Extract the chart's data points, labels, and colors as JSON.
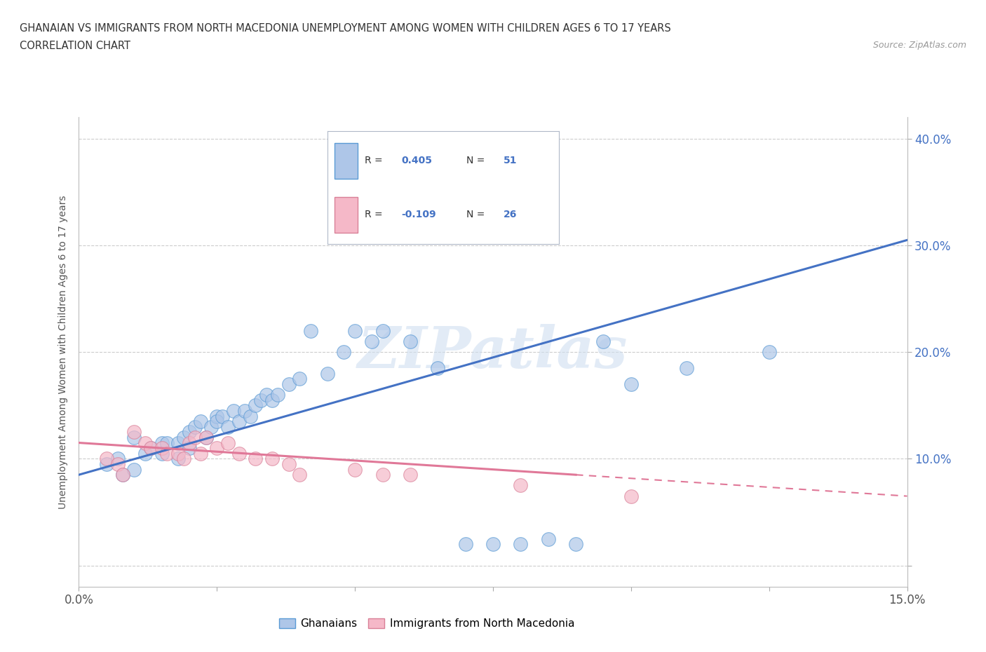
{
  "title_line1": "GHANAIAN VS IMMIGRANTS FROM NORTH MACEDONIA UNEMPLOYMENT AMONG WOMEN WITH CHILDREN AGES 6 TO 17 YEARS",
  "title_line2": "CORRELATION CHART",
  "source": "Source: ZipAtlas.com",
  "ylabel": "Unemployment Among Women with Children Ages 6 to 17 years",
  "xlim": [
    0.0,
    0.15
  ],
  "ylim": [
    -0.02,
    0.42
  ],
  "xticks": [
    0.0,
    0.025,
    0.05,
    0.075,
    0.1,
    0.125,
    0.15
  ],
  "xtick_labels": [
    "0.0%",
    "",
    "",
    "",
    "",
    "",
    "15.0%"
  ],
  "yticks": [
    0.0,
    0.1,
    0.2,
    0.3,
    0.4
  ],
  "ytick_labels": [
    "",
    "10.0%",
    "20.0%",
    "30.0%",
    "40.0%"
  ],
  "watermark": "ZIPatlas",
  "blue_color": "#aec6e8",
  "blue_edge": "#5b9bd5",
  "pink_color": "#f5b8c8",
  "pink_edge": "#d98098",
  "blue_line_color": "#4472c4",
  "pink_line_color": "#e07898",
  "grid_color": "#cccccc",
  "blue_line_x0": 0.0,
  "blue_line_y0": 0.085,
  "blue_line_x1": 0.15,
  "blue_line_y1": 0.305,
  "pink_line_x0": 0.0,
  "pink_line_y0": 0.115,
  "pink_line_x1": 0.15,
  "pink_line_y1": 0.065,
  "blue_scatter_x": [
    0.005,
    0.007,
    0.008,
    0.01,
    0.01,
    0.012,
    0.013,
    0.015,
    0.015,
    0.016,
    0.018,
    0.018,
    0.019,
    0.02,
    0.02,
    0.021,
    0.022,
    0.023,
    0.024,
    0.025,
    0.025,
    0.026,
    0.027,
    0.028,
    0.029,
    0.03,
    0.031,
    0.032,
    0.033,
    0.034,
    0.035,
    0.036,
    0.038,
    0.04,
    0.042,
    0.045,
    0.048,
    0.05,
    0.053,
    0.055,
    0.06,
    0.065,
    0.07,
    0.075,
    0.08,
    0.085,
    0.09,
    0.095,
    0.1,
    0.11,
    0.125
  ],
  "blue_scatter_y": [
    0.095,
    0.1,
    0.085,
    0.12,
    0.09,
    0.105,
    0.11,
    0.115,
    0.105,
    0.115,
    0.115,
    0.1,
    0.12,
    0.125,
    0.11,
    0.13,
    0.135,
    0.12,
    0.13,
    0.14,
    0.135,
    0.14,
    0.13,
    0.145,
    0.135,
    0.145,
    0.14,
    0.15,
    0.155,
    0.16,
    0.155,
    0.16,
    0.17,
    0.175,
    0.22,
    0.18,
    0.2,
    0.22,
    0.21,
    0.22,
    0.21,
    0.185,
    0.02,
    0.02,
    0.02,
    0.025,
    0.02,
    0.21,
    0.17,
    0.185,
    0.2
  ],
  "pink_scatter_x": [
    0.005,
    0.007,
    0.008,
    0.01,
    0.012,
    0.013,
    0.015,
    0.016,
    0.018,
    0.019,
    0.02,
    0.021,
    0.022,
    0.023,
    0.025,
    0.027,
    0.029,
    0.032,
    0.035,
    0.038,
    0.04,
    0.05,
    0.055,
    0.06,
    0.08,
    0.1
  ],
  "pink_scatter_y": [
    0.1,
    0.095,
    0.085,
    0.125,
    0.115,
    0.11,
    0.11,
    0.105,
    0.105,
    0.1,
    0.115,
    0.12,
    0.105,
    0.12,
    0.11,
    0.115,
    0.105,
    0.1,
    0.1,
    0.095,
    0.085,
    0.09,
    0.085,
    0.085,
    0.075,
    0.065
  ]
}
